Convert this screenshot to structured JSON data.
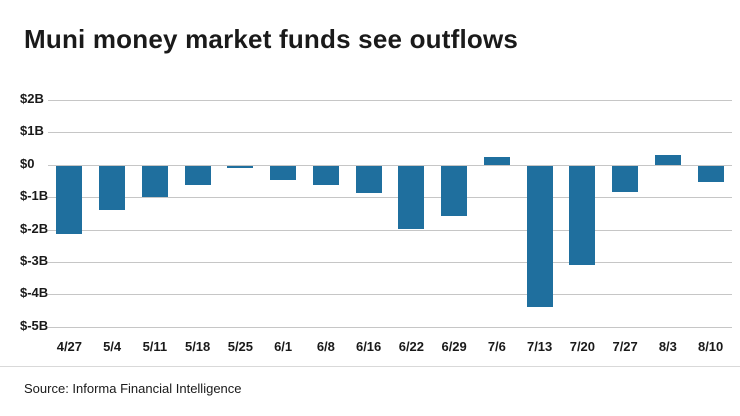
{
  "title": "Muni money market funds see outflows",
  "source": "Source: Informa Financial Intelligence",
  "colors": {
    "bar": "#1f6f9e",
    "grid": "#c6c6c6",
    "text": "#1a1a1a"
  },
  "chart_data": {
    "type": "bar",
    "title": "Muni money market funds see outflows",
    "categories": [
      "4/27",
      "5/4",
      "5/11",
      "5/18",
      "5/25",
      "6/1",
      "6/8",
      "6/16",
      "6/22",
      "6/29",
      "7/6",
      "7/13",
      "7/20",
      "7/27",
      "8/3",
      "8/10"
    ],
    "values": [
      -2.1,
      -1.35,
      -0.95,
      -0.6,
      -0.07,
      -0.45,
      -0.6,
      -0.85,
      -1.95,
      -1.55,
      0.25,
      -4.35,
      -3.05,
      -0.8,
      0.3,
      -0.5
    ],
    "ytick_labels": [
      "$2B",
      "$1B",
      "$0",
      "$-1B",
      "$-2B",
      "$-3B",
      "$-4B",
      "$-5B"
    ],
    "ytick_values": [
      2,
      1,
      0,
      -1,
      -2,
      -3,
      -4,
      -5
    ],
    "ylim": [
      -5,
      2
    ],
    "xlabel": "",
    "ylabel": "",
    "grid": true,
    "legend": "none",
    "units": "billions USD"
  }
}
